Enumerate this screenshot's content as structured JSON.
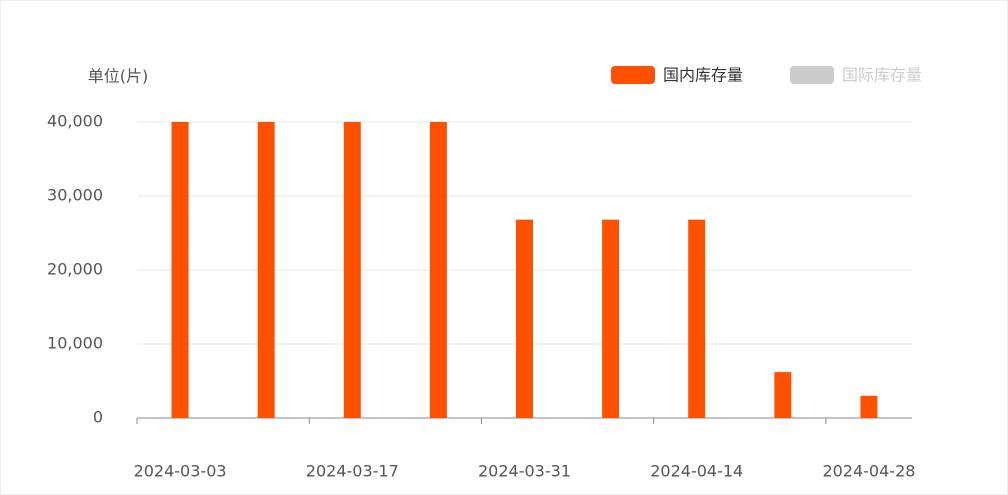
{
  "chart_data": {
    "type": "bar",
    "y_axis_label": "单位(片)",
    "categories": [
      "2024-03-03",
      null,
      "2024-03-17",
      null,
      "2024-03-31",
      null,
      "2024-04-14",
      null,
      "2024-04-28"
    ],
    "series": [
      {
        "name": "国内库存量",
        "color": "#ff5000",
        "visible": true,
        "values": [
          40000,
          40000,
          40000,
          40000,
          26800,
          26800,
          26800,
          6200,
          3000
        ]
      },
      {
        "name": "国际库存量",
        "color": "#cccccc",
        "visible": false,
        "values": [
          null,
          null,
          null,
          null,
          null,
          null,
          null,
          null,
          null
        ]
      }
    ],
    "ylim": [
      0,
      40000
    ],
    "yticks": [
      {
        "value": 0,
        "label": "0"
      },
      {
        "value": 10000,
        "label": "10,000"
      },
      {
        "value": 20000,
        "label": "20,000"
      },
      {
        "value": 30000,
        "label": "30,000"
      },
      {
        "value": 40000,
        "label": "40,000"
      }
    ],
    "grid": true
  }
}
